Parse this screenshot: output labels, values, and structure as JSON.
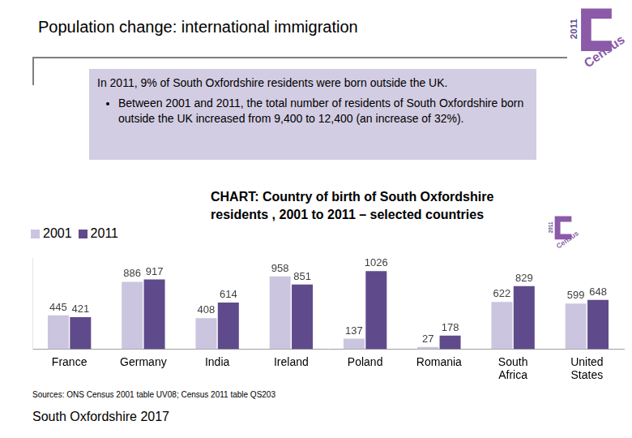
{
  "slide_title": "Population change: international immigration",
  "summary": "In 2011, 9% of South Oxfordshire residents were born outside the UK.",
  "bullets": [
    "Between 2001 and 2011, the total number of residents of South Oxfordshire born outside the UK increased from 9,400 to 12,400 (an increase of 32%)."
  ],
  "logo": {
    "year": "2011",
    "label": "Census"
  },
  "source": "Sources: ONS Census 2001 table UV08; Census 2011 table QS203",
  "footer": "South Oxfordshire 2017",
  "chart_data": {
    "type": "bar",
    "title": "CHART: Country of birth of South Oxfordshire residents , 2001 to 2011 – selected countries",
    "categories": [
      "France",
      "Germany",
      "India",
      "Ireland",
      "Poland",
      "Romania",
      "South Africa",
      "United States"
    ],
    "series": [
      {
        "name": "2001",
        "color": "#cbc5df",
        "values": [
          445,
          886,
          408,
          958,
          137,
          27,
          622,
          599
        ]
      },
      {
        "name": "2011",
        "color": "#5f4b8b",
        "values": [
          421,
          917,
          614,
          851,
          1026,
          178,
          829,
          648
        ]
      }
    ],
    "ylim": [
      0,
      1200
    ],
    "yticks": [],
    "grid": false,
    "legend": "top-left",
    "data_labels": true,
    "tick_labels": "x"
  }
}
